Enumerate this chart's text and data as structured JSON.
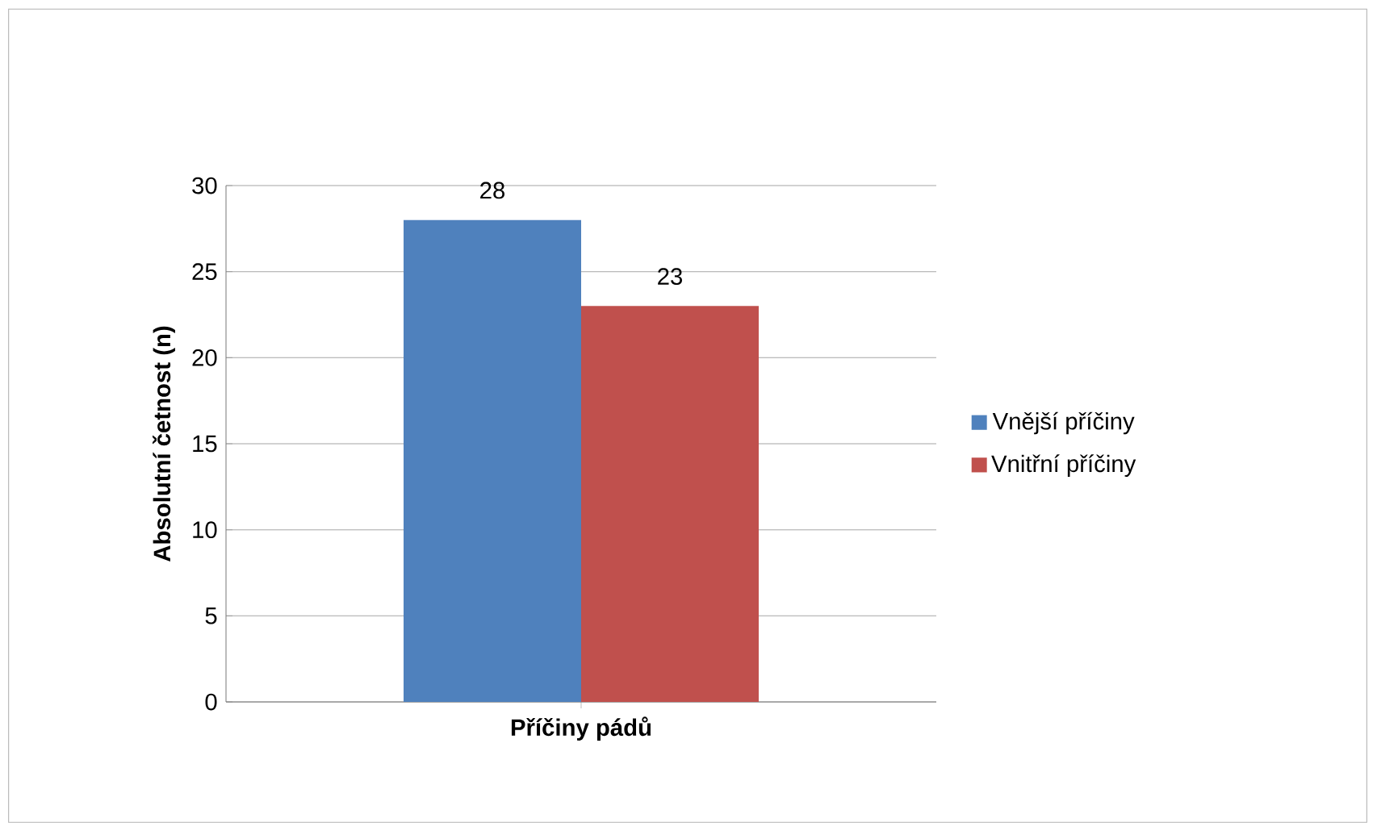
{
  "chart_data": {
    "type": "bar",
    "categories": [
      "Příčiny pádů"
    ],
    "ylabel": "Absolutní četnost (n)",
    "series": [
      {
        "name": "Vnější příčiny",
        "color": "#4f81bd",
        "values": [
          28
        ]
      },
      {
        "name": "Vnitřní příčiny",
        "color": "#c0504d",
        "values": [
          23
        ]
      }
    ],
    "ylim": [
      0,
      30
    ],
    "yticks": [
      0,
      5,
      10,
      15,
      20,
      25,
      30
    ],
    "grid": "y",
    "legend": "right",
    "data_labels": true
  }
}
